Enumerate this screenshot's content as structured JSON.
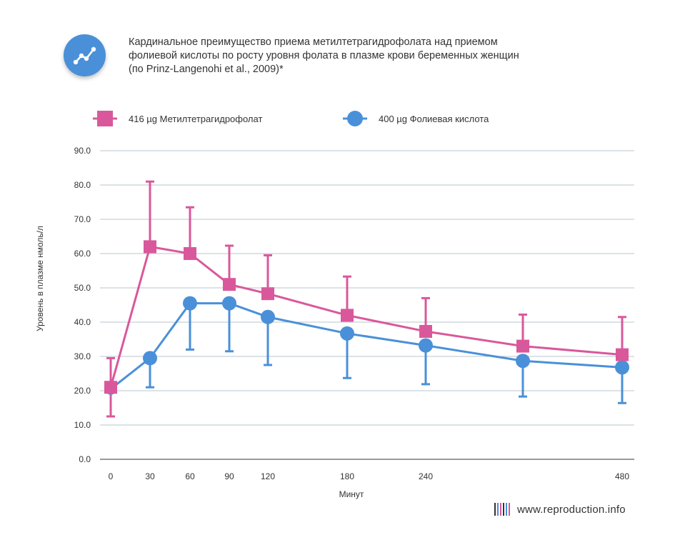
{
  "header": {
    "title_lines": [
      "Кардинальное преимущество приема метилтетрагидрофолата над приемом",
      "фолиевой кислоты по росту уровня фолата в плазме крови беременных женщин",
      "(по Prinz-Langenohi et al., 2009)*"
    ],
    "logo_icon": "line-chart-icon"
  },
  "legend": [
    {
      "label": "416 µg Метилтетрагидрофолат",
      "color": "#d9589b",
      "marker": "square"
    },
    {
      "label": "400 µg Фолиевая кислота",
      "color": "#4a90d9",
      "marker": "circle"
    }
  ],
  "chart_data": {
    "type": "line",
    "title": "Кардинальное преимущество приема метилтетрагидрофолата над приемом фолиевой кислоты по росту уровня фолата в плазме крови беременных женщин (по Prinz-Langenohi et al., 2009)*",
    "xlabel": "Минут",
    "ylabel": "Уровень в плазме  нмоль/л",
    "ylim": [
      0,
      90
    ],
    "y_ticks": [
      "0.0",
      "10.0",
      "20.0",
      "30.0",
      "40.0",
      "50.0",
      "60.0",
      "70.0",
      "80.0",
      "90.0"
    ],
    "x_ticks": [
      "0",
      "30",
      "60",
      "90",
      "120",
      "180",
      "240",
      "",
      "480"
    ],
    "grid": true,
    "legend_position": "top",
    "series": [
      {
        "name": "416 µg Метилтетрагидрофолат",
        "color": "#d9589b",
        "marker": "square",
        "values": [
          21.0,
          62.0,
          60.0,
          51.0,
          48.3,
          42.0,
          37.3,
          33.0,
          30.5
        ],
        "error": [
          8.5,
          19.0,
          13.5,
          11.3,
          11.2,
          11.3,
          9.7,
          9.2,
          11.0
        ]
      },
      {
        "name": "400 µg Фолиевая кислота",
        "color": "#4a90d9",
        "marker": "circle",
        "values": [
          20.5,
          29.5,
          45.5,
          45.5,
          41.5,
          36.7,
          33.2,
          28.7,
          26.8
        ],
        "error": [
          0,
          8.5,
          13.5,
          14.0,
          14.0,
          13.0,
          11.3,
          10.4,
          10.4
        ]
      }
    ]
  },
  "watermark": {
    "text": "www.reproduction.info",
    "bar_colors": [
      "#333333",
      "#4a90d9",
      "#d9589b",
      "#333333",
      "#4a90d9",
      "#d9589b"
    ]
  }
}
